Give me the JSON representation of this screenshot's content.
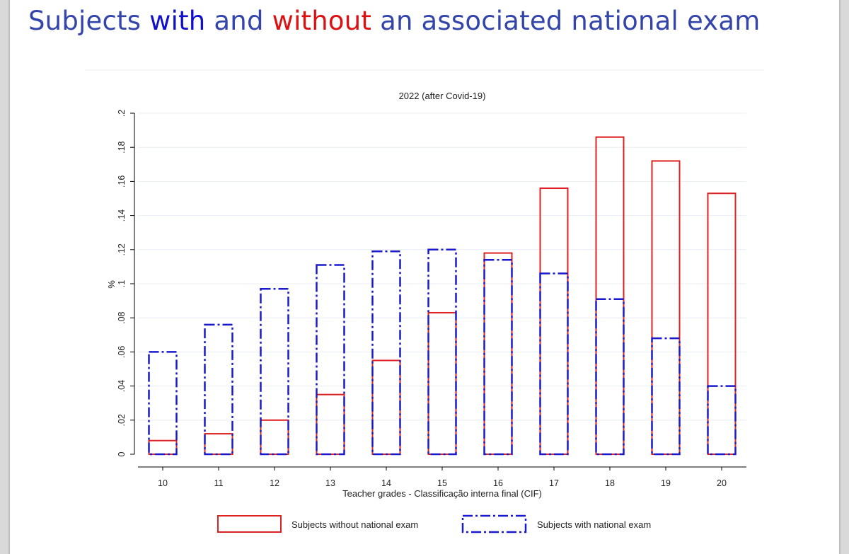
{
  "slide": {
    "title_parts": [
      {
        "text": "Subjects ",
        "color": "#3344aa"
      },
      {
        "text": "with",
        "color": "#1010cc"
      },
      {
        "text": " and ",
        "color": "#3344aa"
      },
      {
        "text": "without",
        "color": "#dd1111"
      },
      {
        "text": " an associated national exam",
        "color": "#3344aa"
      }
    ]
  },
  "chart_data": {
    "type": "bar",
    "title": "2022 (after Covid-19)",
    "xlabel": "Teacher grades - Classificação interna final (CIF)",
    "ylabel": "%",
    "categories": [
      "10",
      "11",
      "12",
      "13",
      "14",
      "15",
      "16",
      "17",
      "18",
      "19",
      "20"
    ],
    "ylim": [
      0,
      0.2
    ],
    "yticks": [
      0,
      0.02,
      0.04,
      0.06,
      0.08,
      0.1,
      0.12,
      0.14,
      0.16,
      0.18,
      0.2
    ],
    "ytick_labels": [
      "0",
      ".02",
      ".04",
      ".06",
      ".08",
      ".1",
      ".12",
      ".14",
      ".16",
      ".18",
      ".2"
    ],
    "grid": true,
    "legend_position": "bottom",
    "series": [
      {
        "name": "Subjects without national exam",
        "color": "#dd2222",
        "style": "solid",
        "values": [
          0.008,
          0.012,
          0.02,
          0.035,
          0.055,
          0.083,
          0.118,
          0.156,
          0.186,
          0.172,
          0.153
        ]
      },
      {
        "name": "Subjects with national exam",
        "color": "#1a1acc",
        "style": "dash-dot",
        "values": [
          0.06,
          0.076,
          0.097,
          0.111,
          0.119,
          0.12,
          0.114,
          0.106,
          0.091,
          0.068,
          0.04
        ]
      }
    ]
  }
}
